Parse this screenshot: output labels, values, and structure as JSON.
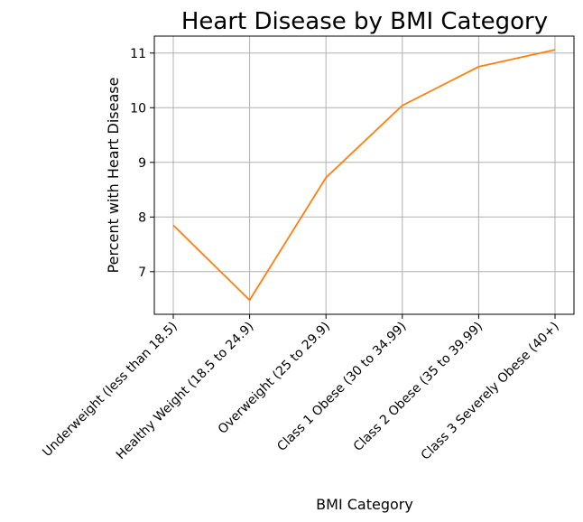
{
  "chart_data": {
    "type": "line",
    "title": "Heart Disease by BMI Category",
    "xlabel": "BMI Category",
    "ylabel": "Percent with Heart Disease",
    "categories": [
      "Underweight (less than 18.5)",
      "Healthy Weight (18.5 to 24.9)",
      "Overweight (25 to 29.9)",
      "Class 1 Obese (30 to 34.99)",
      "Class 2 Obese (35 to 39.99)",
      "Class 3 Severely Obese (40+)"
    ],
    "values": [
      7.85,
      6.48,
      8.72,
      10.04,
      10.75,
      11.06
    ],
    "ylim": [
      6.22,
      11.31
    ],
    "yticks": [
      7,
      8,
      9,
      10,
      11
    ],
    "grid": true,
    "line_color": "#ff7f0e"
  }
}
